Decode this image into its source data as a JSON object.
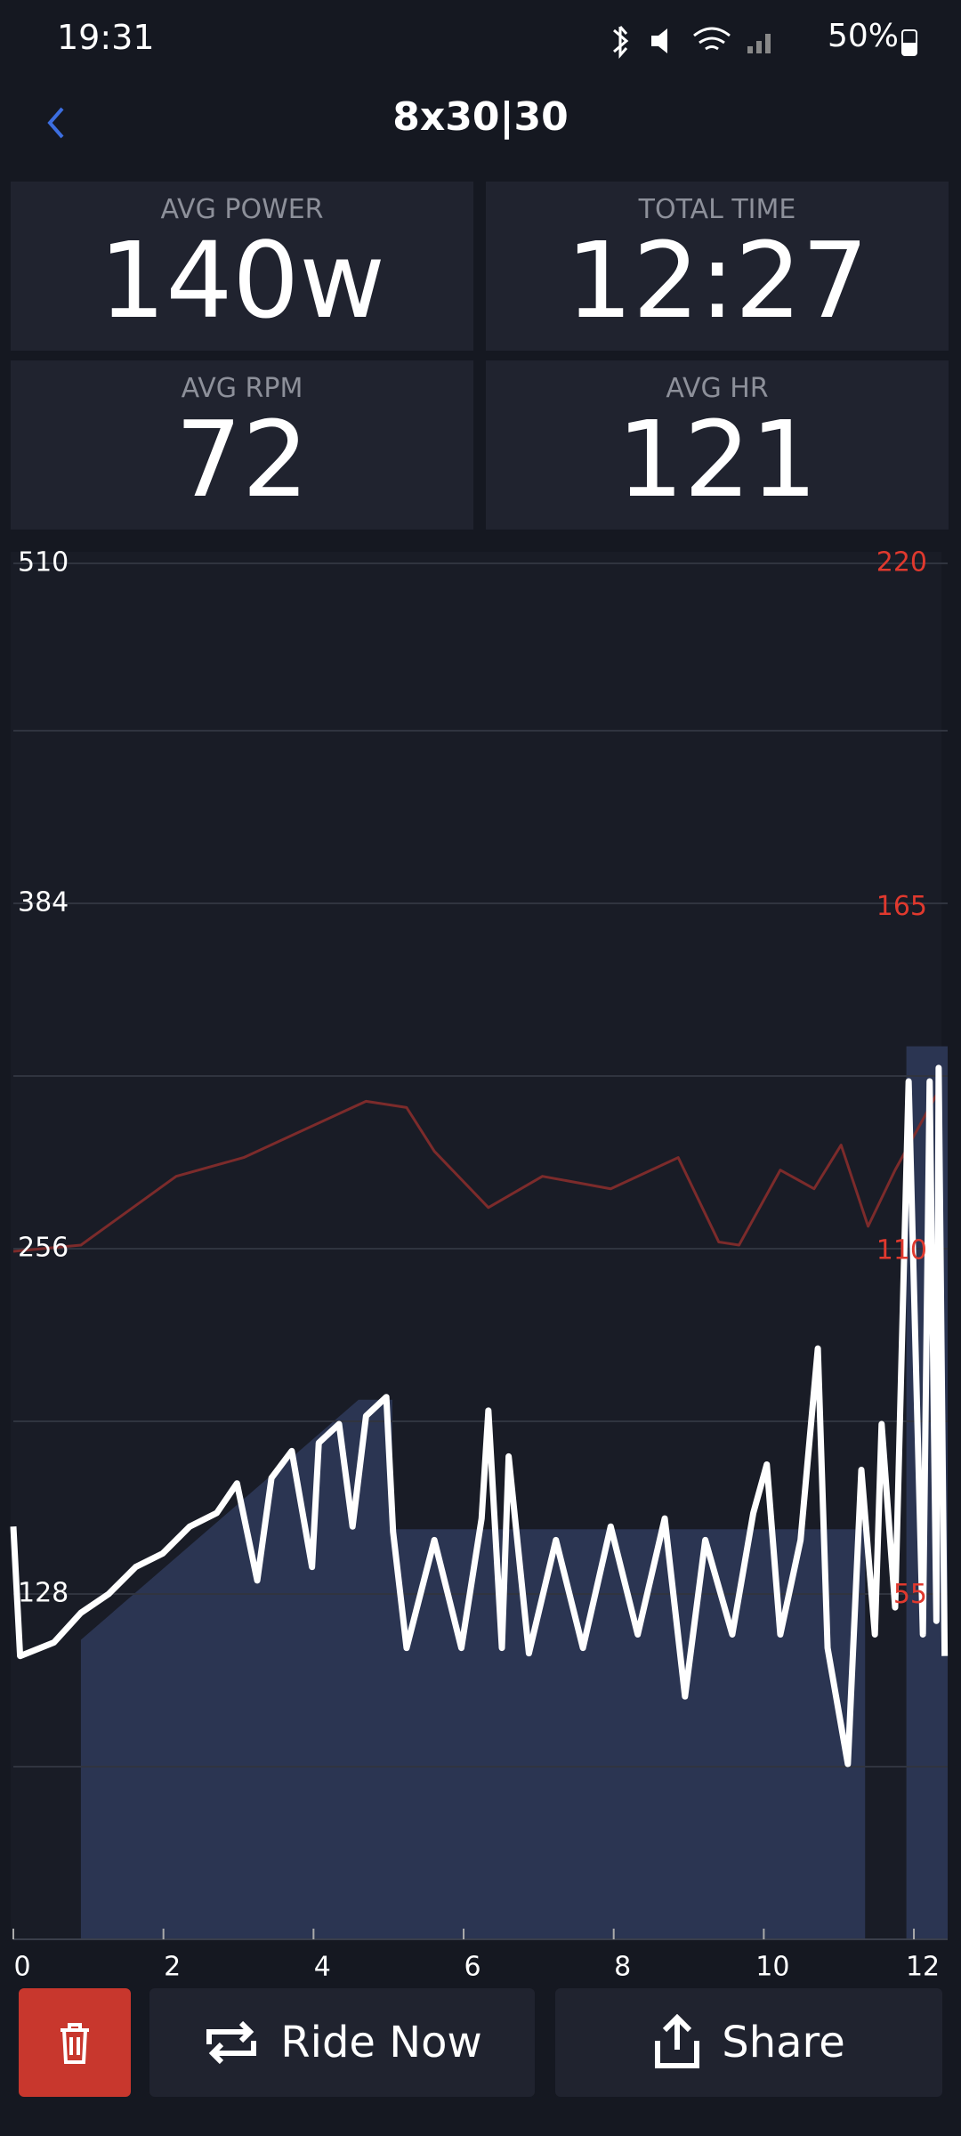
{
  "status_bar": {
    "time": "19:31",
    "battery": "50%"
  },
  "header": {
    "title": "8x30|30"
  },
  "stats": [
    {
      "label": "AVG POWER",
      "value": "140w"
    },
    {
      "label": "TOTAL TIME",
      "value": "12:27"
    },
    {
      "label": "AVG RPM",
      "value": "72"
    },
    {
      "label": "AVG HR",
      "value": "121"
    }
  ],
  "chart_data": {
    "type": "line",
    "xlim": [
      0,
      12.45
    ],
    "xticks": [
      0,
      2,
      4,
      6,
      8,
      10,
      12
    ],
    "ylim": [
      0,
      510
    ],
    "yticks": [
      128,
      256,
      384,
      510
    ],
    "minor_yticks": [
      64,
      192,
      320,
      448
    ],
    "y2lim": [
      0,
      220
    ],
    "y2ticks": [
      55,
      110,
      165,
      220
    ],
    "grid": true,
    "target": {
      "color": "#2b3552",
      "x": [
        0.9,
        0.9,
        4.6,
        5.05,
        5.05,
        11.35,
        11.35,
        11.9,
        11.9,
        12.45,
        12.45
      ],
      "values": [
        0,
        111,
        200,
        200,
        152,
        152,
        0,
        0,
        331,
        331,
        0
      ]
    },
    "series": [
      {
        "name": "Heart rate",
        "color": "#7c2b2b",
        "axis": "y2",
        "x": [
          0,
          0.9,
          2.17,
          3.07,
          4.7,
          5.24,
          5.61,
          6.33,
          7.05,
          7.96,
          8.86,
          9.4,
          9.67,
          10.22,
          10.67,
          11.03,
          11.39,
          11.75,
          12.3
        ],
        "values": [
          110,
          111,
          122,
          125,
          134,
          133,
          126,
          117,
          122,
          120,
          125,
          111.5,
          111,
          123,
          120,
          127,
          114,
          123,
          135
        ]
      },
      {
        "name": "Power",
        "color": "#ffffff",
        "x": [
          0,
          0.09,
          0.54,
          0.9,
          1.27,
          1.63,
          1.99,
          2.35,
          2.71,
          2.98,
          3.25,
          3.44,
          3.71,
          3.98,
          4.07,
          4.34,
          4.52,
          4.7,
          4.97,
          5.06,
          5.24,
          5.61,
          5.97,
          6.24,
          6.33,
          6.51,
          6.6,
          6.87,
          7.23,
          7.59,
          7.96,
          8.32,
          8.68,
          8.95,
          9.22,
          9.58,
          9.86,
          10.04,
          10.22,
          10.49,
          10.72,
          10.85,
          11.12,
          11.3,
          11.48,
          11.57,
          11.75,
          11.93,
          12.12,
          12.21,
          12.3,
          12.33,
          12.41
        ],
        "values": [
          153,
          105,
          110,
          121,
          128,
          138,
          143,
          153,
          158,
          169,
          133,
          171,
          181,
          138,
          184,
          191,
          153,
          194,
          201,
          151,
          108,
          148,
          108,
          156,
          196,
          108,
          179,
          106,
          148,
          108,
          153,
          113,
          156,
          90,
          148,
          113,
          158,
          176,
          113,
          148,
          219,
          108,
          65,
          174,
          113,
          191,
          123,
          318,
          113,
          318,
          118,
          323,
          105
        ]
      }
    ]
  },
  "buttons": {
    "ride": "Ride Now",
    "share": "Share"
  }
}
